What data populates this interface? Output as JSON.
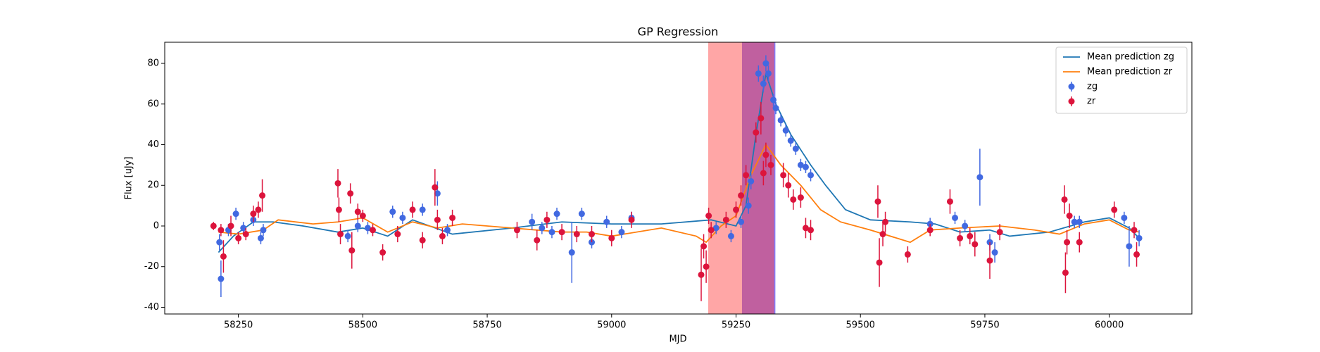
{
  "chart_data": {
    "type": "line",
    "title": "GP Regression",
    "xlabel": "MJD",
    "ylabel": "Flux [uJy]",
    "xlim": [
      58102,
      60166
    ],
    "ylim": [
      -43.3,
      90.4
    ],
    "xticks": [
      58250,
      58500,
      58750,
      59000,
      59250,
      59500,
      59750,
      60000
    ],
    "yticks": [
      -40,
      -20,
      0,
      20,
      40,
      60,
      80
    ],
    "legend": "upper right",
    "spans": [
      {
        "xmin": 59194,
        "xmax": 59328,
        "color": "#ffa6a6"
      },
      {
        "xmin": 59262,
        "xmax": 59328,
        "color": "#c0609f",
        "edge": "#8080ff"
      }
    ],
    "lines": [
      {
        "name": "Mean prediction zg",
        "color": "#1f77b4",
        "x": [
          58210,
          58240,
          58280,
          58320,
          58380,
          58450,
          58500,
          58550,
          58600,
          58680,
          58800,
          58900,
          59000,
          59100,
          59200,
          59250,
          59270,
          59290,
          59310,
          59330,
          59360,
          59400,
          59430,
          59470,
          59520,
          59600,
          59650,
          59700,
          59760,
          59800,
          59880,
          59950,
          60000,
          60040,
          60060
        ],
        "values": [
          -13,
          -5,
          2,
          2,
          0,
          -3,
          -1,
          -5,
          3,
          -4,
          -1,
          2,
          1,
          1,
          3,
          0,
          10,
          45,
          75,
          60,
          45,
          30,
          20,
          8,
          3,
          2,
          1,
          -3,
          -2,
          -5,
          -3,
          2,
          4,
          -1,
          -6
        ]
      },
      {
        "name": "Mean prediction zr",
        "color": "#ff7f0e",
        "x": [
          58210,
          58250,
          58300,
          58330,
          58400,
          58450,
          58500,
          58550,
          58600,
          58650,
          58700,
          58800,
          58900,
          58950,
          59000,
          59100,
          59170,
          59190,
          59220,
          59250,
          59280,
          59310,
          59340,
          59380,
          59420,
          59460,
          59520,
          59600,
          59640,
          59700,
          59780,
          59850,
          59900,
          59950,
          60000,
          60040,
          60060
        ],
        "values": [
          -3,
          -4,
          -2,
          3,
          1,
          2,
          4,
          -3,
          2,
          -1,
          1,
          -1,
          -3,
          -3,
          -5,
          -1,
          -5,
          -8,
          0,
          5,
          25,
          40,
          30,
          20,
          8,
          2,
          -2,
          -8,
          -2,
          -1,
          0,
          -2,
          -4,
          1,
          3,
          -2,
          -3
        ]
      }
    ],
    "scatter": [
      {
        "name": "zg",
        "color": "#4169e1",
        "x": [
          58212,
          58215,
          58230,
          58245,
          58260,
          58280,
          58295,
          58300,
          58470,
          58490,
          58510,
          58560,
          58580,
          58620,
          58650,
          58670,
          58840,
          58860,
          58880,
          58890,
          58920,
          58940,
          58960,
          58990,
          59020,
          59040,
          59210,
          59240,
          59260,
          59275,
          59280,
          59295,
          59305,
          59310,
          59315,
          59325,
          59330,
          59340,
          59350,
          59360,
          59370,
          59380,
          59390,
          59400,
          59640,
          59690,
          59710,
          59740,
          59760,
          59770,
          59930,
          59940,
          60030,
          60040,
          60060
        ],
        "values": [
          -8,
          -26,
          -2,
          6,
          -1,
          3,
          -6,
          -2,
          -5,
          0,
          -1,
          7,
          4,
          8,
          16,
          -2,
          2,
          -1,
          -3,
          6,
          -13,
          6,
          -8,
          2,
          -3,
          4,
          -1,
          -5,
          2,
          10,
          22,
          75,
          70,
          80,
          75,
          62,
          58,
          52,
          47,
          42,
          38,
          30,
          29,
          25,
          1,
          4,
          0,
          24,
          -8,
          -13,
          2,
          2,
          4,
          -10,
          -6
        ],
        "errors": [
          4,
          9,
          3,
          3,
          3,
          3,
          3,
          3,
          3,
          3,
          3,
          3,
          3,
          3,
          6,
          3,
          4,
          3,
          3,
          3,
          15,
          3,
          3,
          3,
          3,
          3,
          3,
          3,
          3,
          4,
          4,
          4,
          4,
          4,
          4,
          3,
          3,
          3,
          3,
          3,
          3,
          3,
          3,
          3,
          3,
          3,
          3,
          14,
          4,
          5,
          3,
          3,
          3,
          10,
          4
        ]
      },
      {
        "name": "zr",
        "color": "#dc143c",
        "x": [
          58200,
          58215,
          58220,
          58235,
          58250,
          58265,
          58280,
          58290,
          58298,
          58450,
          58452,
          58455,
          58475,
          58478,
          58490,
          58500,
          58520,
          58540,
          58570,
          58600,
          58620,
          58645,
          58650,
          58660,
          58680,
          58810,
          58850,
          58870,
          58900,
          58930,
          58960,
          59000,
          59040,
          59180,
          59185,
          59190,
          59195,
          59200,
          59230,
          59250,
          59260,
          59270,
          59290,
          59300,
          59305,
          59310,
          59320,
          59345,
          59355,
          59365,
          59380,
          59390,
          59400,
          59535,
          59538,
          59545,
          59550,
          59595,
          59640,
          59680,
          59700,
          59720,
          59730,
          59760,
          59780,
          59910,
          59912,
          59915,
          59920,
          59940,
          60010,
          60050,
          60055
        ],
        "values": [
          0,
          -2,
          -15,
          0,
          -6,
          -4,
          6,
          8,
          15,
          21,
          8,
          -4,
          16,
          -12,
          7,
          5,
          -2,
          -13,
          -4,
          8,
          -7,
          19,
          3,
          -5,
          4,
          -2,
          -7,
          3,
          -3,
          -4,
          -4,
          -6,
          3,
          -24,
          -10,
          -20,
          5,
          -2,
          3,
          8,
          15,
          25,
          46,
          53,
          26,
          35,
          30,
          25,
          20,
          13,
          14,
          -1,
          -2,
          12,
          -18,
          -4,
          2,
          -14,
          -2,
          12,
          -6,
          -5,
          -9,
          -17,
          -3,
          13,
          -23,
          -8,
          5,
          -8,
          8,
          -2,
          -14
        ],
        "errors": [
          2,
          3,
          8,
          5,
          3,
          3,
          4,
          4,
          8,
          7,
          6,
          5,
          5,
          9,
          4,
          3,
          3,
          4,
          4,
          4,
          4,
          9,
          5,
          4,
          4,
          4,
          5,
          4,
          4,
          4,
          4,
          4,
          4,
          13,
          6,
          8,
          4,
          4,
          4,
          4,
          5,
          5,
          5,
          8,
          6,
          6,
          5,
          6,
          6,
          5,
          5,
          5,
          5,
          8,
          12,
          6,
          5,
          4,
          3,
          6,
          4,
          4,
          6,
          9,
          4,
          7,
          10,
          6,
          6,
          5,
          4,
          4,
          6
        ]
      }
    ]
  }
}
